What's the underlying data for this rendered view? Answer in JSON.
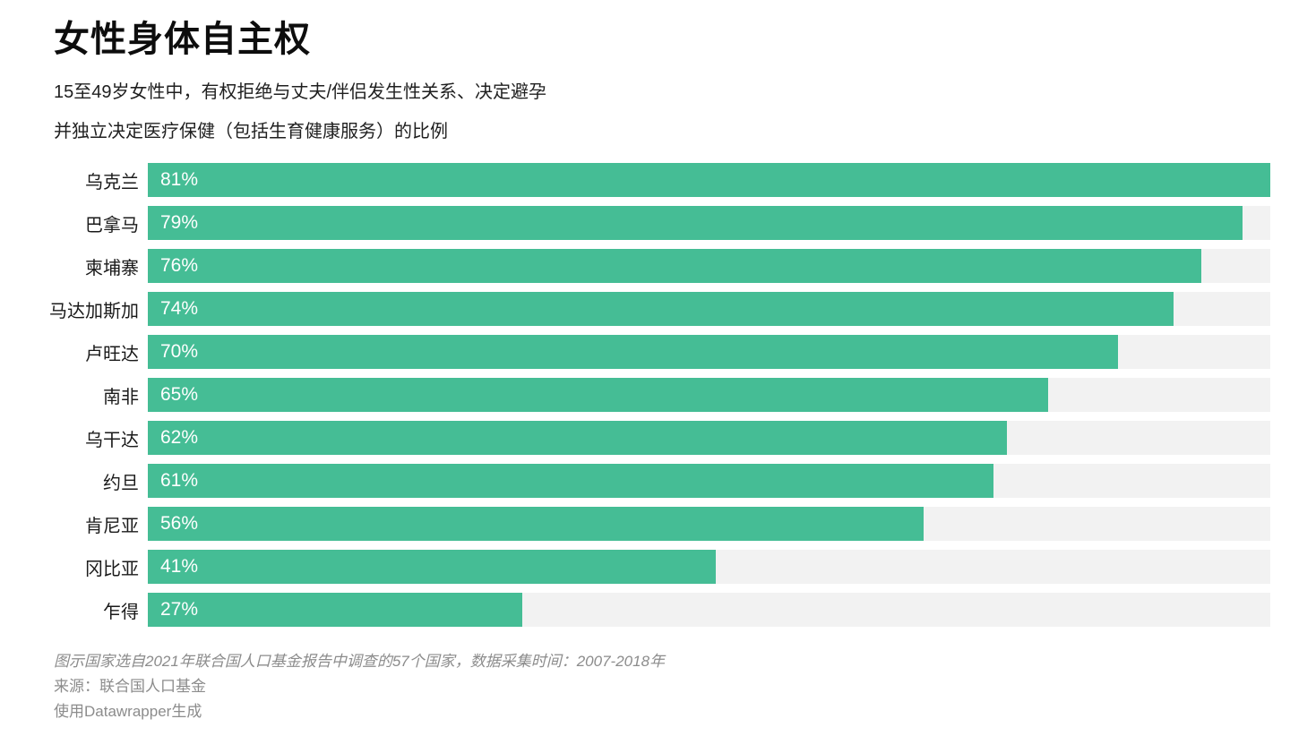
{
  "header": {
    "title": "女性身体自主权",
    "subtitle_line1": "15至49岁女性中，有权拒绝与丈夫/伴侣发生性关系、决定避孕",
    "subtitle_line2": "并独立决定医疗保健（包括生育健康服务）的比例"
  },
  "chart_data": {
    "type": "bar",
    "orientation": "horizontal",
    "title": "女性身体自主权",
    "categories": [
      "乌克兰",
      "巴拿马",
      "柬埔寨",
      "马达加斯加",
      "卢旺达",
      "南非",
      "乌干达",
      "约旦",
      "肯尼亚",
      "冈比亚",
      "乍得"
    ],
    "values": [
      81,
      79,
      76,
      74,
      70,
      65,
      62,
      61,
      56,
      41,
      27
    ],
    "value_labels": [
      "81%",
      "79%",
      "76%",
      "74%",
      "70%",
      "65%",
      "62%",
      "61%",
      "56%",
      "41%",
      "27%"
    ],
    "unit": "%",
    "xlim": [
      0,
      81
    ],
    "grid": false,
    "legend": false,
    "bar_color": "#45bd95",
    "track_color": "#f2f2f2",
    "value_label_color": "#ffffff"
  },
  "footer": {
    "note": "图示国家选自2021年联合国人口基金报告中调查的57个国家，数据采集时间：2007-2018年",
    "source": "来源：联合国人口基金",
    "attribution": "使用Datawrapper生成"
  }
}
